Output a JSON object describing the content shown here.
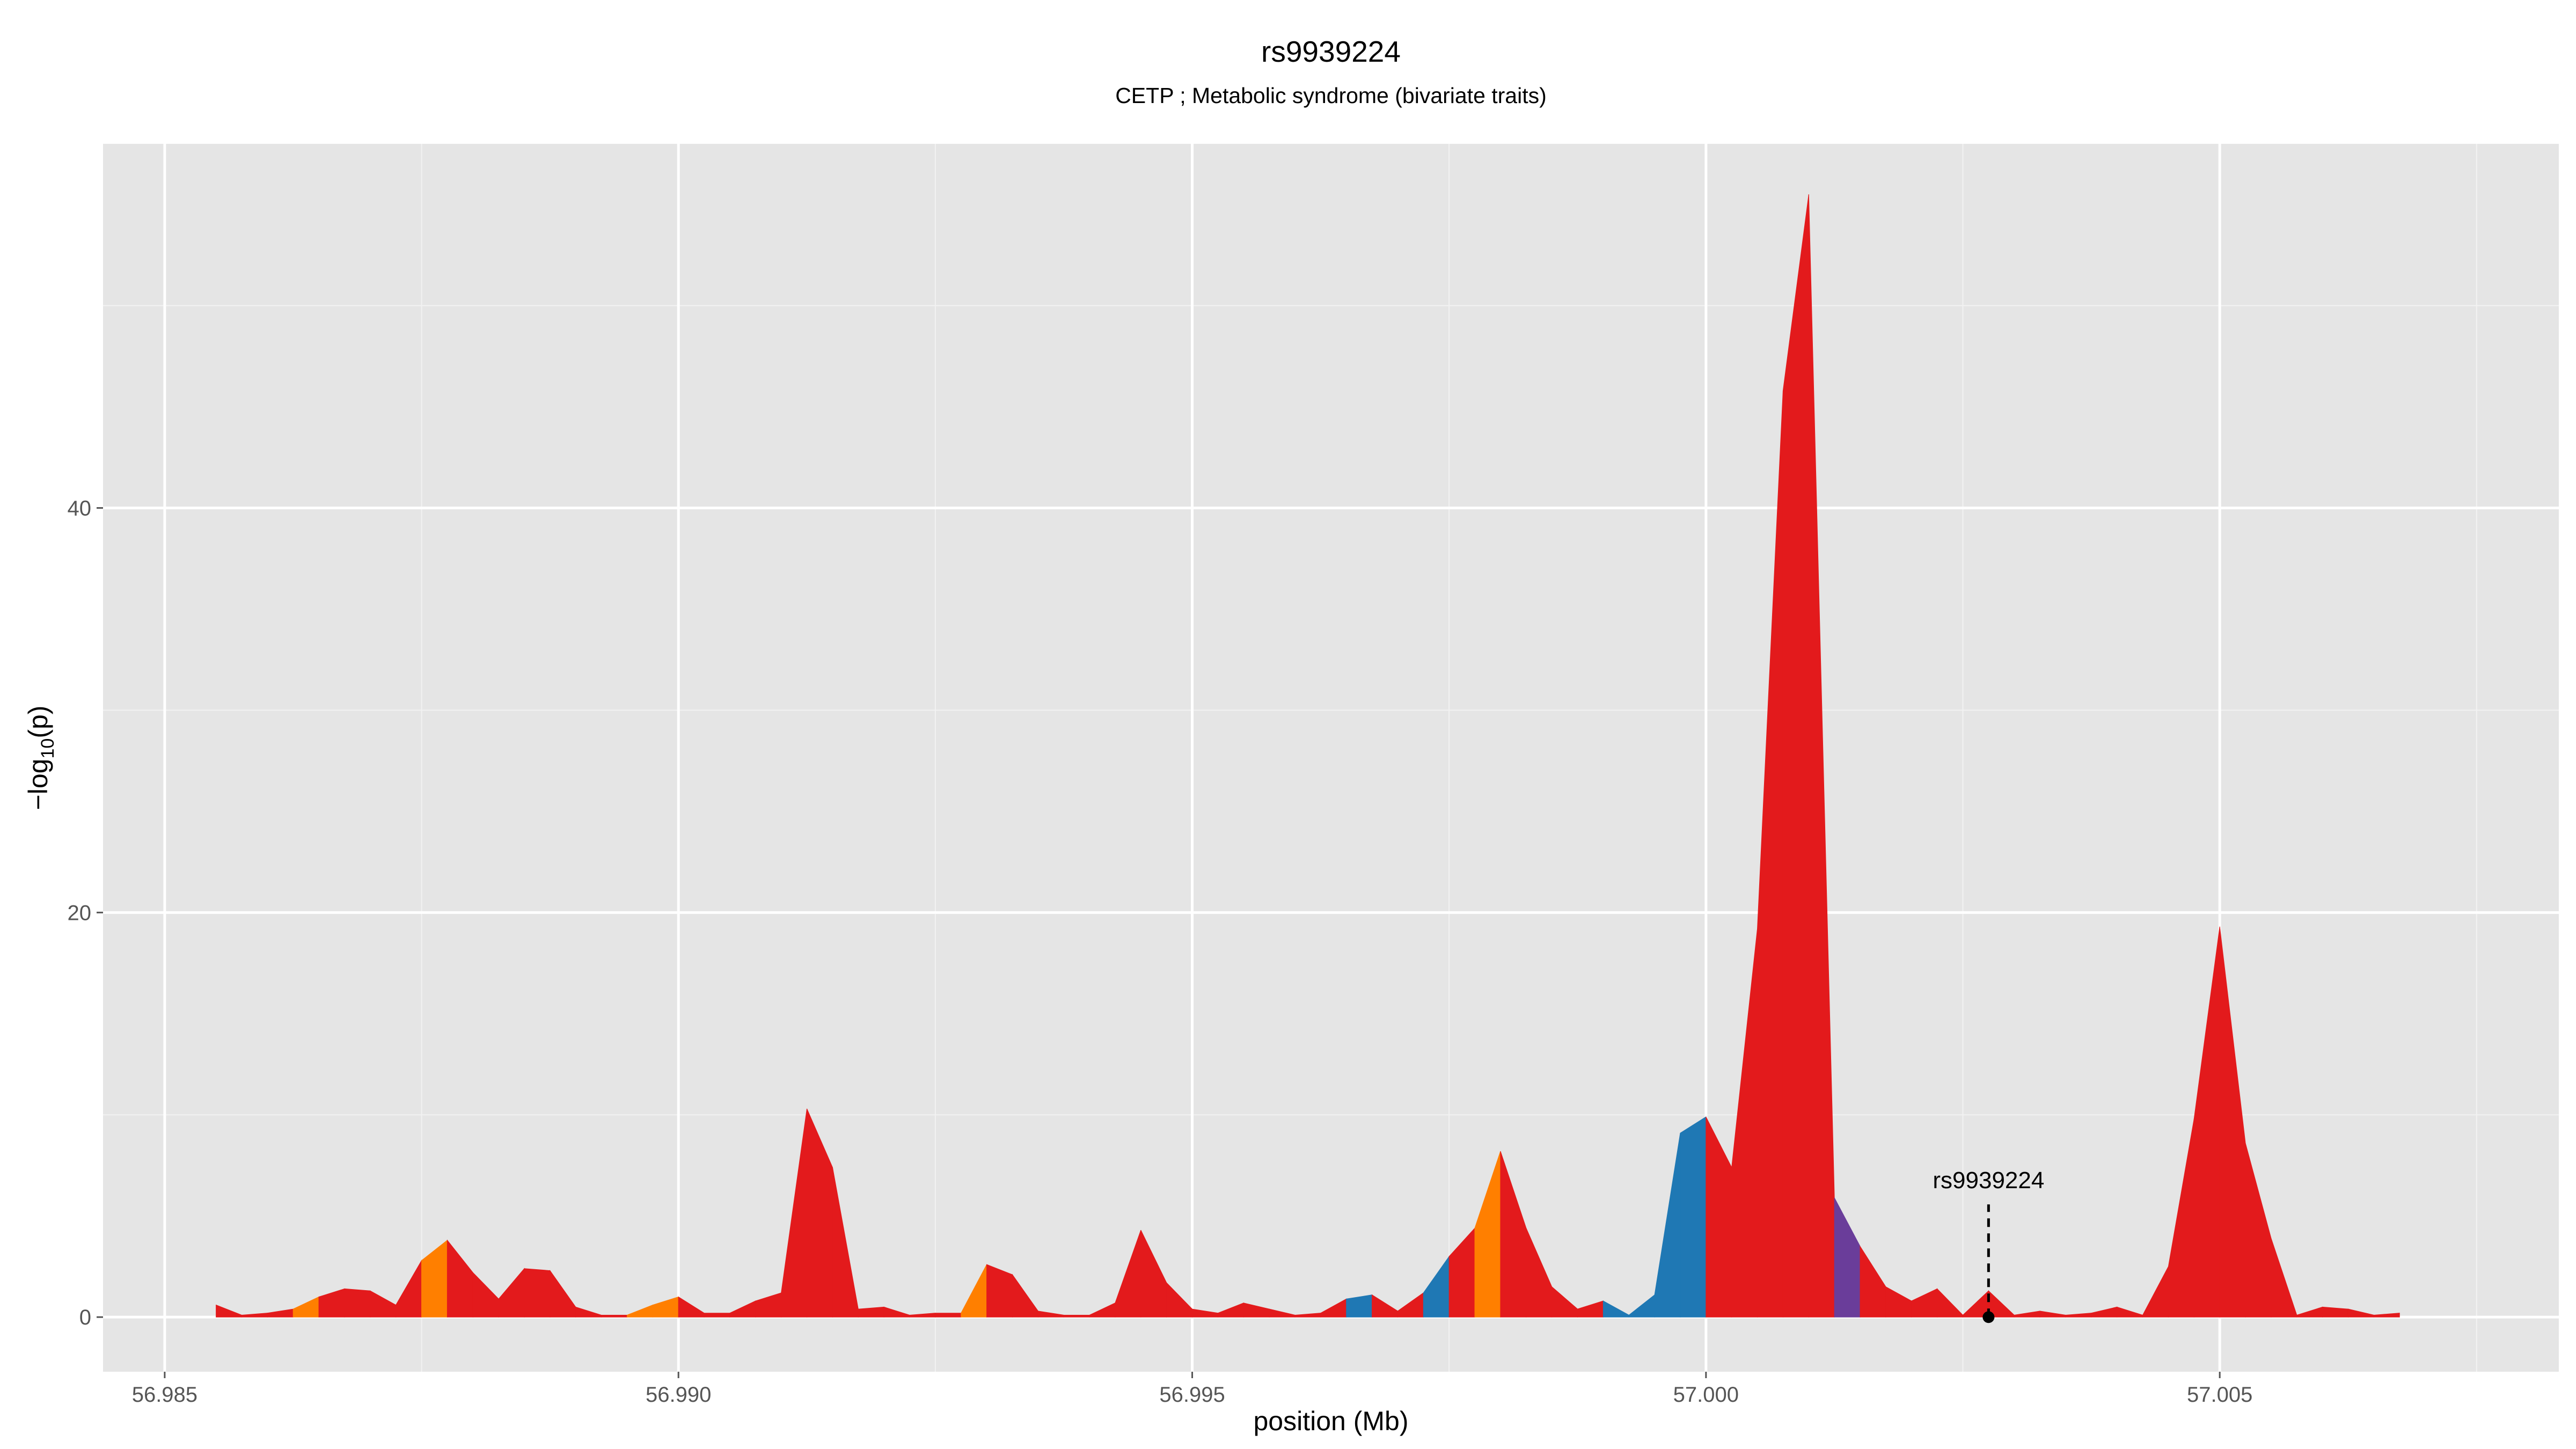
{
  "chart_data": {
    "type": "area",
    "title": "rs9939224",
    "subtitle": "CETP ; Metabolic syndrome (bivariate traits)",
    "xlabel": "position (Mb)",
    "ylabel": "-log10(p)",
    "xlim": [
      56.9844,
      57.0083
    ],
    "ylim": [
      -2.7,
      58
    ],
    "x_ticks": [
      "56.985",
      "56.990",
      "56.995",
      "57.000",
      "57.005"
    ],
    "x_tick_values": [
      56.985,
      56.99,
      56.995,
      57.0,
      57.005
    ],
    "y_ticks": [
      "0",
      "20",
      "40"
    ],
    "y_tick_values": [
      0,
      20,
      40
    ],
    "grid": true,
    "legend": "none",
    "colors": {
      "panel_bg": "#e5e5e5",
      "grid_major": "#ffffff",
      "grid_minor": "#f2f2f2",
      "red": "#e31a1c",
      "orange": "#ff7f00",
      "blue": "#1f78b4",
      "purple": "#6a3d9a"
    },
    "points": [
      {
        "x": 56.9855,
        "y": 0.6,
        "c": "red"
      },
      {
        "x": 56.98575,
        "y": 0.1,
        "c": "red"
      },
      {
        "x": 56.986,
        "y": 0.2,
        "c": "red"
      },
      {
        "x": 56.98625,
        "y": 0.4,
        "c": "orange"
      },
      {
        "x": 56.9865,
        "y": 1.0,
        "c": "red"
      },
      {
        "x": 56.98675,
        "y": 1.4,
        "c": "red"
      },
      {
        "x": 56.987,
        "y": 1.3,
        "c": "red"
      },
      {
        "x": 56.98725,
        "y": 0.6,
        "c": "red"
      },
      {
        "x": 56.9875,
        "y": 2.8,
        "c": "orange"
      },
      {
        "x": 56.98775,
        "y": 3.8,
        "c": "red"
      },
      {
        "x": 56.988,
        "y": 2.2,
        "c": "red"
      },
      {
        "x": 56.98825,
        "y": 0.9,
        "c": "red"
      },
      {
        "x": 56.9885,
        "y": 2.4,
        "c": "red"
      },
      {
        "x": 56.98875,
        "y": 2.3,
        "c": "red"
      },
      {
        "x": 56.989,
        "y": 0.5,
        "c": "red"
      },
      {
        "x": 56.98925,
        "y": 0.1,
        "c": "red"
      },
      {
        "x": 56.9895,
        "y": 0.1,
        "c": "orange"
      },
      {
        "x": 56.98975,
        "y": 0.6,
        "c": "orange"
      },
      {
        "x": 56.99,
        "y": 1.0,
        "c": "red"
      },
      {
        "x": 56.99025,
        "y": 0.2,
        "c": "red"
      },
      {
        "x": 56.9905,
        "y": 0.2,
        "c": "red"
      },
      {
        "x": 56.99075,
        "y": 0.8,
        "c": "red"
      },
      {
        "x": 56.991,
        "y": 1.2,
        "c": "red"
      },
      {
        "x": 56.99125,
        "y": 10.3,
        "c": "red"
      },
      {
        "x": 56.9915,
        "y": 7.4,
        "c": "red"
      },
      {
        "x": 56.99175,
        "y": 0.4,
        "c": "red"
      },
      {
        "x": 56.992,
        "y": 0.5,
        "c": "red"
      },
      {
        "x": 56.99225,
        "y": 0.1,
        "c": "red"
      },
      {
        "x": 56.9925,
        "y": 0.2,
        "c": "red"
      },
      {
        "x": 56.99275,
        "y": 0.2,
        "c": "orange"
      },
      {
        "x": 56.993,
        "y": 2.6,
        "c": "red"
      },
      {
        "x": 56.99325,
        "y": 2.1,
        "c": "red"
      },
      {
        "x": 56.9935,
        "y": 0.3,
        "c": "red"
      },
      {
        "x": 56.99375,
        "y": 0.1,
        "c": "red"
      },
      {
        "x": 56.994,
        "y": 0.1,
        "c": "red"
      },
      {
        "x": 56.99425,
        "y": 0.7,
        "c": "red"
      },
      {
        "x": 56.9945,
        "y": 4.3,
        "c": "red"
      },
      {
        "x": 56.99475,
        "y": 1.7,
        "c": "red"
      },
      {
        "x": 56.995,
        "y": 0.4,
        "c": "red"
      },
      {
        "x": 56.99525,
        "y": 0.2,
        "c": "red"
      },
      {
        "x": 56.9955,
        "y": 0.7,
        "c": "red"
      },
      {
        "x": 56.99575,
        "y": 0.4,
        "c": "red"
      },
      {
        "x": 56.996,
        "y": 0.1,
        "c": "red"
      },
      {
        "x": 56.99625,
        "y": 0.2,
        "c": "red"
      },
      {
        "x": 56.9965,
        "y": 0.9,
        "c": "blue"
      },
      {
        "x": 56.99675,
        "y": 1.1,
        "c": "red"
      },
      {
        "x": 56.997,
        "y": 0.3,
        "c": "red"
      },
      {
        "x": 56.99725,
        "y": 1.2,
        "c": "blue"
      },
      {
        "x": 56.9975,
        "y": 3.0,
        "c": "red"
      },
      {
        "x": 56.99775,
        "y": 4.4,
        "c": "orange"
      },
      {
        "x": 56.998,
        "y": 8.2,
        "c": "red"
      },
      {
        "x": 56.99825,
        "y": 4.4,
        "c": "red"
      },
      {
        "x": 56.9985,
        "y": 1.5,
        "c": "red"
      },
      {
        "x": 56.99875,
        "y": 0.4,
        "c": "red"
      },
      {
        "x": 56.999,
        "y": 0.8,
        "c": "blue"
      },
      {
        "x": 56.99925,
        "y": 0.1,
        "c": "blue"
      },
      {
        "x": 56.9995,
        "y": 1.1,
        "c": "blue"
      },
      {
        "x": 56.99975,
        "y": 9.1,
        "c": "blue"
      },
      {
        "x": 57.0,
        "y": 9.9,
        "c": "red"
      },
      {
        "x": 57.00025,
        "y": 7.4,
        "c": "red"
      },
      {
        "x": 57.0005,
        "y": 19.2,
        "c": "red"
      },
      {
        "x": 57.00075,
        "y": 45.8,
        "c": "red"
      },
      {
        "x": 57.001,
        "y": 55.5,
        "c": "red"
      },
      {
        "x": 57.00125,
        "y": 5.9,
        "c": "purple"
      },
      {
        "x": 57.0015,
        "y": 3.5,
        "c": "red"
      },
      {
        "x": 57.00175,
        "y": 1.5,
        "c": "red"
      },
      {
        "x": 57.002,
        "y": 0.8,
        "c": "red"
      },
      {
        "x": 57.00225,
        "y": 1.4,
        "c": "red"
      },
      {
        "x": 57.0025,
        "y": 0.1,
        "c": "red"
      },
      {
        "x": 57.00275,
        "y": 1.3,
        "c": "red"
      },
      {
        "x": 57.003,
        "y": 0.1,
        "c": "red"
      },
      {
        "x": 57.00325,
        "y": 0.3,
        "c": "red"
      },
      {
        "x": 57.0035,
        "y": 0.1,
        "c": "red"
      },
      {
        "x": 57.00375,
        "y": 0.2,
        "c": "red"
      },
      {
        "x": 57.004,
        "y": 0.5,
        "c": "red"
      },
      {
        "x": 57.00425,
        "y": 0.1,
        "c": "red"
      },
      {
        "x": 57.0045,
        "y": 2.5,
        "c": "red"
      },
      {
        "x": 57.00475,
        "y": 9.8,
        "c": "red"
      },
      {
        "x": 57.005,
        "y": 19.3,
        "c": "red"
      },
      {
        "x": 57.00525,
        "y": 8.6,
        "c": "red"
      },
      {
        "x": 57.0055,
        "y": 3.9,
        "c": "red"
      },
      {
        "x": 57.00575,
        "y": 0.1,
        "c": "red"
      },
      {
        "x": 57.006,
        "y": 0.5,
        "c": "red"
      },
      {
        "x": 57.00625,
        "y": 0.4,
        "c": "red"
      },
      {
        "x": 57.0065,
        "y": 0.1,
        "c": "red"
      },
      {
        "x": 57.00675,
        "y": 0.2,
        "c": "red"
      }
    ],
    "annotation": {
      "label": "rs9939224",
      "x": 57.00275,
      "y": 0
    }
  }
}
